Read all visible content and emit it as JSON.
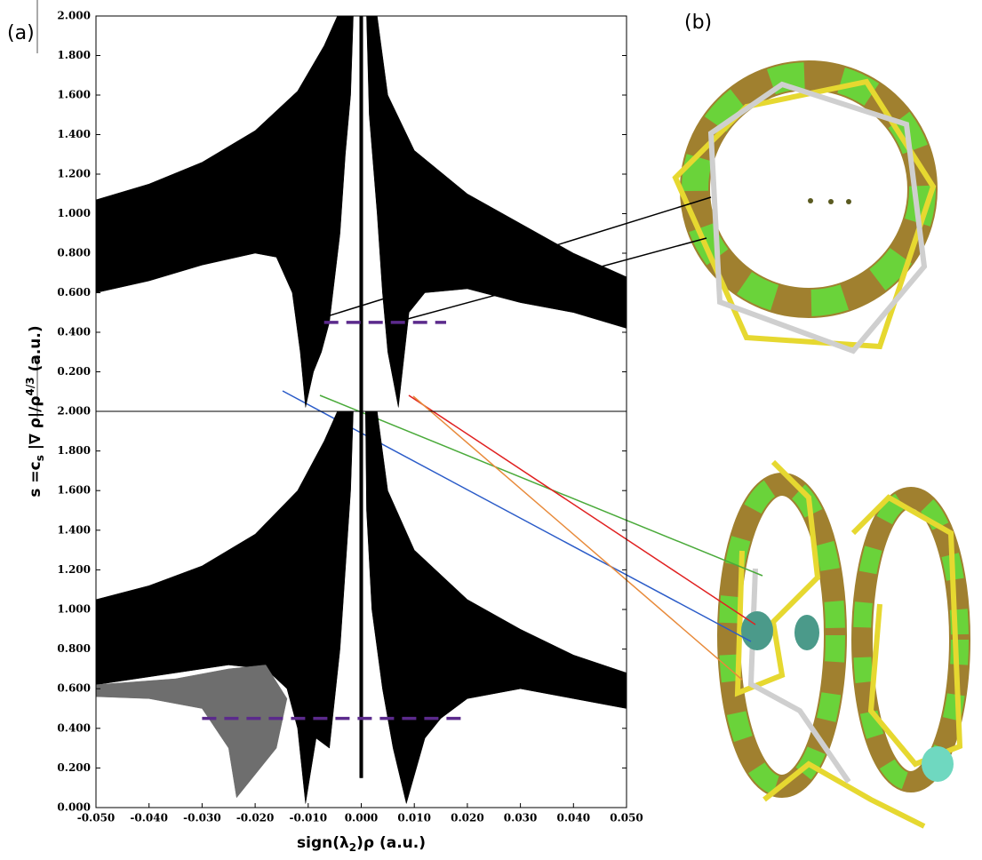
{
  "panel_labels": [
    "(a)",
    "(b)"
  ],
  "chart_data": [
    {
      "type": "scatter",
      "ylabel_parts": [
        "s =c",
        "s",
        " |∇ ρ|/ρ",
        "4/3",
        " (a.u.)"
      ],
      "xlim": [
        -0.05,
        0.05
      ],
      "ylim": [
        0,
        2
      ],
      "yticks": [
        {
          "value": 0.2,
          "label": "0.200"
        },
        {
          "value": 0.4,
          "label": "0.400"
        },
        {
          "value": 0.6,
          "label": "0.600"
        },
        {
          "value": 0.8,
          "label": "0.800"
        },
        {
          "value": 1.0,
          "label": "1.000"
        },
        {
          "value": 1.2,
          "label": "1.200"
        },
        {
          "value": 1.4,
          "label": "1.400"
        },
        {
          "value": 1.6,
          "label": "1.600"
        },
        {
          "value": 1.8,
          "label": "1.800"
        },
        {
          "value": 2.0,
          "label": "2.000"
        }
      ],
      "regions": [
        {
          "color": "#000000",
          "x": [
            -0.05,
            -0.04,
            -0.03,
            -0.02,
            -0.012,
            -0.007,
            -0.0045,
            -0.0015,
            -0.002,
            -0.003,
            -0.004,
            -0.006,
            -0.0075,
            -0.009,
            -0.0105,
            -0.0115,
            -0.013,
            -0.016,
            -0.02,
            -0.03,
            -0.04,
            -0.05
          ],
          "y": [
            1.07,
            1.15,
            1.26,
            1.42,
            1.62,
            1.85,
            2.0,
            2.0,
            1.6,
            1.3,
            0.9,
            0.45,
            0.3,
            0.2,
            0.02,
            0.3,
            0.6,
            0.78,
            0.8,
            0.74,
            0.66,
            0.6
          ]
        },
        {
          "color": "#000000",
          "x": [
            0.001,
            0.003,
            0.005,
            0.01,
            0.02,
            0.03,
            0.04,
            0.05,
            0.05,
            0.04,
            0.03,
            0.02,
            0.012,
            0.009,
            0.007,
            0.005,
            0.004,
            0.003,
            0.0015
          ],
          "y": [
            2.0,
            2.0,
            1.6,
            1.32,
            1.1,
            0.95,
            0.8,
            0.68,
            0.42,
            0.5,
            0.55,
            0.62,
            0.6,
            0.5,
            0.02,
            0.3,
            0.6,
            1.0,
            1.5
          ]
        },
        {
          "color": "#000000",
          "x": [
            -0.0003,
            0.0003,
            0.0003,
            -0.0003
          ],
          "y": [
            2.0,
            2.0,
            0.0,
            0.0
          ]
        }
      ],
      "guides": [
        {
          "x": [
            -0.007,
            0.016
          ],
          "y": 0.45,
          "color": "#5b2a8c"
        }
      ]
    },
    {
      "type": "scatter",
      "xlabel_parts": [
        "sign(λ",
        "2",
        ")ρ (a.u.)"
      ],
      "xlim": [
        -0.05,
        0.05
      ],
      "ylim": [
        0,
        2
      ],
      "xticks": [
        {
          "value": -0.05,
          "label": "-0.050"
        },
        {
          "value": -0.04,
          "label": "-0.040"
        },
        {
          "value": -0.03,
          "label": "-0.030"
        },
        {
          "value": -0.02,
          "label": "-0.020"
        },
        {
          "value": -0.01,
          "label": "-0.010"
        },
        {
          "value": 0,
          "label": "0.000"
        },
        {
          "value": 0.01,
          "label": "0.010"
        },
        {
          "value": 0.02,
          "label": "0.020"
        },
        {
          "value": 0.03,
          "label": "0.030"
        },
        {
          "value": 0.04,
          "label": "0.040"
        },
        {
          "value": 0.05,
          "label": "0.050"
        }
      ],
      "yticks": [
        {
          "value": 0,
          "label": "0.000"
        },
        {
          "value": 0.2,
          "label": "0.200"
        },
        {
          "value": 0.4,
          "label": "0.400"
        },
        {
          "value": 0.6,
          "label": "0.600"
        },
        {
          "value": 0.8,
          "label": "0.800"
        },
        {
          "value": 1.0,
          "label": "1.000"
        },
        {
          "value": 1.2,
          "label": "1.200"
        },
        {
          "value": 1.4,
          "label": "1.400"
        },
        {
          "value": 1.6,
          "label": "1.600"
        },
        {
          "value": 1.8,
          "label": "1.800"
        },
        {
          "value": 2.0,
          "label": "2.000"
        }
      ],
      "regions": [
        {
          "color": "#000000",
          "x": [
            -0.05,
            -0.04,
            -0.03,
            -0.02,
            -0.012,
            -0.007,
            -0.0045,
            -0.0015,
            -0.002,
            -0.003,
            -0.004,
            -0.006,
            -0.0085,
            -0.0105,
            -0.012,
            -0.014,
            -0.018,
            -0.025,
            -0.035,
            -0.05
          ],
          "y": [
            1.05,
            1.12,
            1.22,
            1.38,
            1.6,
            1.85,
            2.0,
            2.0,
            1.6,
            1.2,
            0.8,
            0.3,
            0.35,
            0.02,
            0.4,
            0.6,
            0.7,
            0.72,
            0.68,
            0.62
          ]
        },
        {
          "color": "#6e6e6e",
          "x": [
            -0.05,
            -0.035,
            -0.025,
            -0.018,
            -0.014,
            -0.016,
            -0.0235,
            -0.025,
            -0.03,
            -0.04,
            -0.05
          ],
          "y": [
            0.62,
            0.65,
            0.7,
            0.72,
            0.55,
            0.3,
            0.05,
            0.3,
            0.5,
            0.55,
            0.56
          ]
        },
        {
          "color": "#000000",
          "x": [
            0.0008,
            0.003,
            0.005,
            0.01,
            0.02,
            0.03,
            0.04,
            0.05,
            0.05,
            0.04,
            0.03,
            0.02,
            0.015,
            0.012,
            0.0085,
            0.006,
            0.004,
            0.002,
            0.001
          ],
          "y": [
            2.0,
            2.0,
            1.6,
            1.3,
            1.05,
            0.9,
            0.77,
            0.68,
            0.5,
            0.55,
            0.6,
            0.55,
            0.45,
            0.35,
            0.02,
            0.3,
            0.6,
            1.0,
            1.5
          ]
        },
        {
          "color": "#000000",
          "x": [
            -0.0003,
            0.0003,
            0.0003,
            -0.0003
          ],
          "y": [
            2.0,
            2.0,
            0.15,
            0.15
          ]
        }
      ],
      "guides": [
        {
          "x": [
            -0.03,
            0.019
          ],
          "y": 0.45,
          "color": "#5b2a8c"
        }
      ]
    }
  ]
}
